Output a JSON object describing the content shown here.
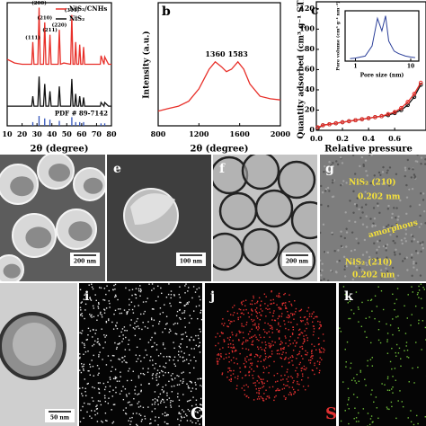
{
  "chart_data": [
    {
      "type": "line",
      "xlabel": "2θ (degree)",
      "xlim": [
        10,
        80
      ],
      "xticks": [
        10,
        20,
        30,
        40,
        50,
        60,
        70,
        80
      ],
      "ylim": [
        0,
        100
      ],
      "legend": "upper right",
      "series": [
        {
          "name": "NiS₂/CNHs",
          "color": "#e8302a",
          "x": [
            10,
            15,
            20,
            24,
            26.5,
            27.2,
            28,
            30.6,
            31.4,
            32.2,
            34.4,
            35.2,
            36,
            37.9,
            38.7,
            39.5,
            44.2,
            45,
            45.8,
            48,
            52.6,
            53.4,
            54.2,
            55.3,
            56,
            56.7,
            58,
            58.7,
            59.4,
            60.6,
            61.3,
            62,
            66,
            70,
            72.5,
            73,
            75,
            75.5,
            78,
            80
          ],
          "values": [
            54,
            51,
            50,
            50,
            50,
            68,
            50,
            50,
            96,
            50,
            50,
            84,
            50,
            50,
            74,
            50,
            50,
            78,
            50,
            51,
            50,
            90,
            50,
            50,
            68,
            50,
            50,
            66,
            50,
            50,
            64,
            50,
            50,
            50,
            50,
            57,
            50,
            56,
            50,
            50
          ]
        },
        {
          "name": "NiS₂",
          "color": "#111111",
          "x": [
            10,
            15,
            20,
            24,
            26.5,
            27.2,
            28,
            30.6,
            31.4,
            32.2,
            34.4,
            35.2,
            36,
            37.9,
            38.7,
            39.5,
            44.2,
            45,
            45.8,
            48,
            52.6,
            53.4,
            54.2,
            55.3,
            56,
            56.7,
            58,
            58.7,
            59.4,
            60.6,
            61.3,
            62,
            66,
            70,
            72.5,
            73,
            75,
            75.5,
            78,
            80
          ],
          "values": [
            16,
            16,
            16,
            16,
            16,
            24,
            16,
            16,
            40,
            16,
            16,
            34,
            16,
            16,
            28,
            16,
            16,
            32,
            16,
            16,
            16,
            38,
            16,
            16,
            26,
            16,
            16,
            24,
            16,
            16,
            23,
            16,
            16,
            16,
            16,
            19,
            16,
            19,
            16,
            16
          ]
        }
      ],
      "reference": {
        "name": "PDF # 89-7142",
        "color": "#3355bb",
        "x": [
          27.2,
          31.4,
          35.2,
          38.7,
          45,
          53.4,
          56,
          58.7,
          61.3,
          73,
          75.5
        ],
        "values": [
          3,
          8,
          6,
          5,
          4,
          7,
          3,
          3,
          3,
          2,
          2
        ]
      },
      "annotations": [
        {
          "text": "(111)",
          "x": 27.2
        },
        {
          "text": "(200)",
          "x": 31.4
        },
        {
          "text": "(210)",
          "x": 35.2
        },
        {
          "text": "(211)",
          "x": 38.7
        },
        {
          "text": "(220)",
          "x": 45
        },
        {
          "text": "(311)",
          "x": 53.4
        }
      ]
    },
    {
      "type": "line",
      "xlabel": "2θ (degree)",
      "ylabel": "Intensity (a.u.)",
      "xlim": [
        800,
        2000
      ],
      "xticks": [
        800,
        1200,
        1600,
        2000
      ],
      "ylim": [
        0,
        100
      ],
      "series": [
        {
          "color": "#e8302a",
          "x": [
            800,
            900,
            1000,
            1100,
            1200,
            1250,
            1300,
            1360,
            1420,
            1470,
            1520,
            1583,
            1640,
            1700,
            1800,
            1900,
            2000
          ],
          "values": [
            12,
            14,
            16,
            20,
            30,
            38,
            46,
            52,
            48,
            44,
            46,
            52,
            46,
            34,
            24,
            22,
            21
          ]
        }
      ],
      "peaks": [
        1360,
        1583
      ]
    },
    {
      "type": "line",
      "markers": true,
      "xlabel": "Relative pressure",
      "ylabel": "Quantity adsorbed (cm³ g⁻¹ STP)",
      "xlim": [
        0,
        0.84
      ],
      "xticks": [
        {
          "value": 0,
          "label": "0.0"
        },
        0.2,
        0.4,
        0.6
      ],
      "ylim": [
        0,
        127
      ],
      "yticks": [
        0,
        20,
        40,
        60,
        80,
        100,
        120
      ],
      "series": [
        {
          "color": "#111111",
          "x": [
            0.01,
            0.05,
            0.1,
            0.15,
            0.2,
            0.25,
            0.3,
            0.35,
            0.4,
            0.45,
            0.5,
            0.55,
            0.6,
            0.65,
            0.7,
            0.75,
            0.8
          ],
          "values": [
            2,
            5,
            6,
            7,
            8,
            9,
            10,
            11,
            12,
            13,
            14,
            15,
            17,
            20,
            25,
            33,
            45
          ]
        },
        {
          "color": "#e8302a",
          "x": [
            0.01,
            0.05,
            0.1,
            0.15,
            0.2,
            0.25,
            0.3,
            0.35,
            0.4,
            0.45,
            0.5,
            0.55,
            0.6,
            0.65,
            0.7,
            0.75,
            0.8
          ],
          "values": [
            3,
            5,
            6,
            7,
            8,
            9,
            10,
            11,
            12,
            13,
            14,
            16,
            18,
            22,
            28,
            36,
            47
          ]
        }
      ]
    },
    {
      "type": "line",
      "log_x": true,
      "xlabel": "Pore size (nm)",
      "ylabel": "Pore volume (cm³ g⁻¹ nm⁻¹)",
      "xlim": [
        0.65,
        14
      ],
      "xticks": [
        1,
        10
      ],
      "ylim": [
        0,
        1
      ],
      "series": [
        {
          "color": "#2b3f9a",
          "x": [
            0.8,
            1,
            1.5,
            2,
            2.5,
            3,
            3.5,
            4,
            5,
            6,
            8,
            10,
            12
          ],
          "values": [
            0.05,
            0.06,
            0.1,
            0.3,
            0.85,
            0.6,
            0.9,
            0.4,
            0.2,
            0.15,
            0.1,
            0.08,
            0.07
          ]
        }
      ]
    }
  ],
  "figure": {
    "panel_letters": [
      "b",
      "c",
      "e",
      "f",
      "g",
      "i",
      "j",
      "k"
    ],
    "scale_bars": [
      "200 nm",
      "100 nm",
      "200 nm",
      "50 nm"
    ],
    "hrtem_labels": [
      "NiS₂ (210)",
      "0.202 nm",
      "amorphous",
      "NiS₂ (210)",
      "0.202 nm"
    ],
    "element_labels": [
      "C",
      "S"
    ]
  }
}
